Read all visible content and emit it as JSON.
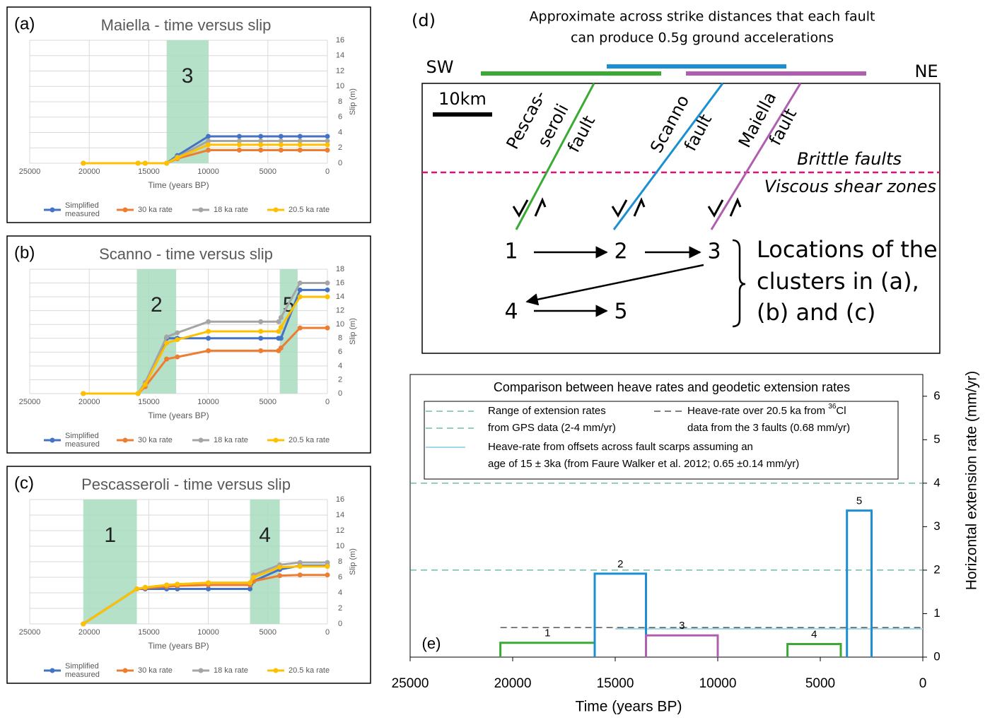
{
  "chart_data": [
    {
      "type": "line",
      "panel": "(a)",
      "title": "Maiella - time versus slip",
      "x_label": "Time (years BP)",
      "y_label": "Slip (m)",
      "xlim": [
        25000,
        0
      ],
      "xticks": [
        25000,
        20000,
        15000,
        10000,
        5000,
        0
      ],
      "ylim": [
        0,
        16
      ],
      "yticks": [
        0,
        2,
        4,
        6,
        8,
        10,
        12,
        14,
        16
      ],
      "grid": true,
      "bands": [
        {
          "from": 13500,
          "to": 10000,
          "label": "3",
          "color": "#a8dcbf"
        }
      ],
      "x": [
        20500,
        15900,
        15300,
        13500,
        12600,
        10000,
        7400,
        5600,
        3900,
        2300,
        0
      ],
      "series": [
        {
          "name": "Simplified measured",
          "color": "#4472c4",
          "values": [
            0,
            0,
            0,
            0,
            1.0,
            3.5,
            3.5,
            3.5,
            3.5,
            3.5,
            3.5
          ]
        },
        {
          "name": "30 ka rate",
          "color": "#ed7d31",
          "values": [
            0,
            0,
            0,
            0,
            0.6,
            1.7,
            1.7,
            1.7,
            1.7,
            1.7,
            1.7
          ]
        },
        {
          "name": "18 ka rate",
          "color": "#a5a5a5",
          "values": [
            0,
            0,
            0,
            0,
            0.8,
            2.9,
            2.9,
            2.9,
            2.9,
            2.9,
            2.9
          ]
        },
        {
          "name": "20.5 ka rate",
          "color": "#ffc000",
          "values": [
            0,
            0,
            0,
            0,
            0.7,
            2.4,
            2.4,
            2.4,
            2.4,
            2.4,
            2.4
          ]
        }
      ]
    },
    {
      "type": "line",
      "panel": "(b)",
      "title": "Scanno - time versus slip",
      "x_label": "Time (years BP)",
      "y_label": "Slip (m)",
      "xlim": [
        25000,
        0
      ],
      "xticks": [
        25000,
        20000,
        15000,
        10000,
        5000,
        0
      ],
      "ylim": [
        0,
        18
      ],
      "yticks": [
        0,
        2,
        4,
        6,
        8,
        10,
        12,
        14,
        16,
        18
      ],
      "grid": true,
      "bands": [
        {
          "from": 16000,
          "to": 12700,
          "label": "2",
          "color": "#a8dcbf"
        },
        {
          "from": 4000,
          "to": 2500,
          "label": "5",
          "color": "#a8dcbf"
        }
      ],
      "x": [
        20500,
        15900,
        15300,
        13500,
        12600,
        10000,
        5600,
        4100,
        3900,
        2300,
        0
      ],
      "series": [
        {
          "name": "Simplified measured",
          "color": "#4472c4",
          "values": [
            0,
            0,
            1.5,
            8,
            8,
            8,
            8,
            8,
            8,
            15,
            15
          ]
        },
        {
          "name": "30 ka rate",
          "color": "#ed7d31",
          "values": [
            0,
            0,
            1.0,
            5.0,
            5.3,
            6.2,
            6.2,
            6.2,
            6.6,
            9.5,
            9.5
          ]
        },
        {
          "name": "18 ka rate",
          "color": "#a5a5a5",
          "values": [
            0,
            0,
            1.6,
            8.2,
            8.8,
            10.4,
            10.4,
            10.4,
            11.0,
            16,
            16
          ]
        },
        {
          "name": "20.5 ka rate",
          "color": "#ffc000",
          "values": [
            0,
            0,
            1.3,
            7.3,
            7.8,
            9.0,
            9.0,
            9.0,
            9.6,
            14,
            14
          ]
        }
      ]
    },
    {
      "type": "line",
      "panel": "(c)",
      "title": "Pescasseroli - time versus slip",
      "x_label": "Time (years BP)",
      "y_label": "Slip (m)",
      "xlim": [
        25000,
        0
      ],
      "xticks": [
        25000,
        20000,
        15000,
        10000,
        5000,
        0
      ],
      "ylim": [
        0,
        16
      ],
      "yticks": [
        0,
        2,
        4,
        6,
        8,
        10,
        12,
        14,
        16
      ],
      "grid": true,
      "bands": [
        {
          "from": 20500,
          "to": 16000,
          "label": "1",
          "color": "#a8dcbf"
        },
        {
          "from": 6500,
          "to": 4000,
          "label": "4",
          "color": "#a8dcbf"
        }
      ],
      "x": [
        20500,
        16000,
        15300,
        13500,
        12600,
        10000,
        6500,
        6200,
        4000,
        2300,
        0
      ],
      "series": [
        {
          "name": "Simplified measured",
          "color": "#4472c4",
          "values": [
            0,
            4.5,
            4.5,
            4.5,
            4.5,
            4.5,
            4.5,
            5.5,
            7.0,
            7.5,
            7.5
          ]
        },
        {
          "name": "30 ka rate",
          "color": "#ed7d31",
          "values": [
            0,
            4.5,
            4.6,
            4.8,
            4.9,
            5.0,
            5.0,
            5.5,
            6.2,
            6.3,
            6.3
          ]
        },
        {
          "name": "18 ka rate",
          "color": "#a5a5a5",
          "values": [
            0,
            4.5,
            4.7,
            5.0,
            5.1,
            5.3,
            5.3,
            6.3,
            7.6,
            7.9,
            7.9
          ]
        },
        {
          "name": "20.5 ka rate",
          "color": "#ffc000",
          "values": [
            0,
            4.5,
            4.7,
            5.0,
            5.1,
            5.3,
            5.3,
            6.0,
            7.3,
            7.4,
            7.4
          ]
        }
      ]
    },
    {
      "type": "step",
      "panel": "(e)",
      "title": "Comparison between heave rates and geodetic extension rates",
      "x_label": "Time (years BP)",
      "y_label": "Horizontal extension rate (mm/yr)",
      "xlim": [
        25000,
        0
      ],
      "xticks": [
        25000,
        20000,
        15000,
        10000,
        5000,
        0
      ],
      "ylim": [
        0,
        6.5
      ],
      "yticks": [
        0,
        1,
        2,
        3,
        4,
        5,
        6
      ],
      "boxes": [
        {
          "label": "1",
          "from": 20600,
          "to": 16000,
          "value": 0.33,
          "color": "#3aaa35"
        },
        {
          "label": "2",
          "from": 16000,
          "to": 13500,
          "value": 1.92,
          "color": "#1b8fd2"
        },
        {
          "label": "3",
          "from": 13500,
          "to": 10000,
          "value": 0.5,
          "color": "#b05fb0"
        },
        {
          "label": "4",
          "from": 6600,
          "to": 4000,
          "value": 0.3,
          "color": "#3aaa35"
        },
        {
          "label": "5",
          "from": 3700,
          "to": 2500,
          "value": 3.37,
          "color": "#1b8fd2"
        }
      ],
      "reference_lines": [
        {
          "value": 2,
          "color": "#2a9d7a",
          "style": "dashed"
        },
        {
          "value": 4,
          "color": "#2a9d7a",
          "style": "dashed"
        },
        {
          "value": 0.68,
          "from": 20600,
          "to": 0,
          "color": "#000000",
          "style": "dashed"
        },
        {
          "value": 0.65,
          "from": 15000,
          "to": 0,
          "color": "#9fd9ea",
          "style": "solid"
        }
      ],
      "legend": [
        {
          "lines": [
            "Range of extension rates",
            "from GPS data (2-4 mm/yr)"
          ],
          "color": "#2a9d7a",
          "style": "dashed"
        },
        {
          "lines": [
            "Heave-rate over 20.5 ka from ",
            "data from the 3 faults (0.68 mm/yr)"
          ],
          "sup": "36",
          "sup_after": "Cl",
          "color": "#000000",
          "style": "dashed"
        },
        {
          "lines": [
            "Heave-rate from offsets across fault scarps assuming an",
            "age of 15 ± 3ka (from Faure Walker et al. 2012; 0.65 ±0.14 mm/yr)"
          ],
          "color": "#9fd9ea",
          "style": "solid"
        }
      ]
    }
  ],
  "diagram": {
    "panel": "(d)",
    "title": [
      "Approximate across strike distances that each fault",
      "can produce 0.5g ground accelerations"
    ],
    "sw": "SW",
    "ne": "NE",
    "scale": "10km",
    "faults": [
      [
        "Pescas-",
        "seroli",
        "fault"
      ],
      [
        "Scanno",
        "fault"
      ],
      [
        "Maiella",
        "fault"
      ]
    ],
    "layers": [
      "Brittle faults",
      "Viscous shear zones"
    ],
    "clusters": [
      "1",
      "2",
      "3",
      "4",
      "5"
    ],
    "caption": [
      "Locations of the",
      "clusters in (a),",
      "(b) and (c)"
    ]
  }
}
